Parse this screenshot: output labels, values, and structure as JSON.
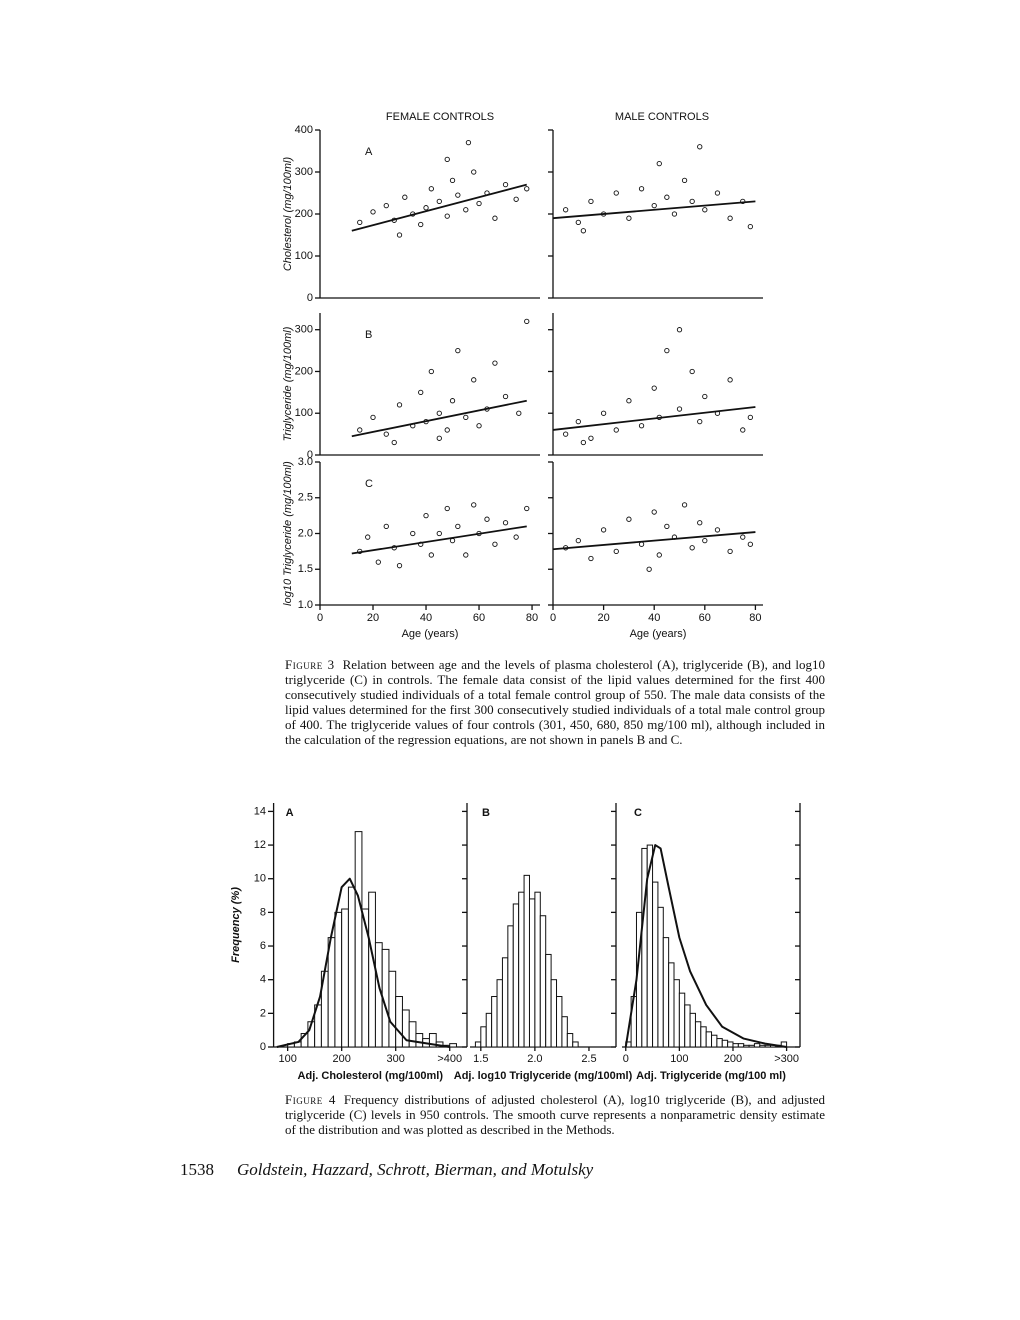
{
  "figure3": {
    "column_titles": [
      "FEMALE CONTROLS",
      "MALE CONTROLS"
    ],
    "charts": [
      {
        "type": "scatter",
        "panel": "A",
        "y_label": "Cholesterol (mg/100ml)",
        "xlim": [
          0,
          83
        ],
        "ylim": [
          0,
          400
        ],
        "yticks": [
          0,
          100,
          200,
          300,
          400
        ],
        "x": [
          20,
          25,
          28,
          32,
          35,
          38,
          40,
          42,
          45,
          48,
          50,
          52,
          55,
          58,
          60,
          63,
          66,
          70,
          74,
          78,
          48,
          56,
          15,
          30
        ],
        "y": [
          205,
          220,
          185,
          240,
          200,
          175,
          215,
          260,
          230,
          195,
          280,
          245,
          210,
          300,
          225,
          250,
          190,
          270,
          235,
          260,
          330,
          370,
          180,
          150
        ],
        "fit": {
          "x": [
            12,
            78
          ],
          "y": [
            160,
            270
          ]
        }
      },
      {
        "type": "scatter",
        "xlim": [
          0,
          83
        ],
        "ylim": [
          0,
          400
        ],
        "yticks": [
          0,
          100,
          200,
          300,
          400
        ],
        "x": [
          5,
          10,
          15,
          20,
          25,
          30,
          35,
          40,
          45,
          48,
          52,
          55,
          60,
          65,
          70,
          75,
          78,
          42,
          58,
          12
        ],
        "y": [
          210,
          180,
          230,
          200,
          250,
          190,
          260,
          220,
          240,
          200,
          280,
          230,
          210,
          250,
          190,
          230,
          170,
          320,
          360,
          160
        ],
        "fit": {
          "x": [
            0,
            80
          ],
          "y": [
            190,
            230
          ]
        }
      },
      {
        "type": "scatter",
        "panel": "B",
        "y_label": "Triglyceride (mg/100ml)",
        "xlim": [
          0,
          83
        ],
        "ylim": [
          0,
          340
        ],
        "yticks": [
          0,
          100,
          200,
          300
        ],
        "x": [
          15,
          20,
          25,
          30,
          35,
          38,
          40,
          42,
          45,
          48,
          50,
          52,
          55,
          58,
          60,
          63,
          66,
          70,
          75,
          78,
          28,
          45
        ],
        "y": [
          60,
          90,
          50,
          120,
          70,
          150,
          80,
          200,
          100,
          60,
          130,
          250,
          90,
          180,
          70,
          110,
          220,
          140,
          100,
          320,
          30,
          40
        ],
        "fit": {
          "x": [
            12,
            78
          ],
          "y": [
            45,
            130
          ]
        }
      },
      {
        "type": "scatter",
        "xlim": [
          0,
          83
        ],
        "ylim": [
          0,
          340
        ],
        "yticks": [
          0,
          100,
          200,
          300
        ],
        "x": [
          5,
          10,
          15,
          20,
          25,
          30,
          35,
          40,
          42,
          45,
          50,
          55,
          58,
          60,
          65,
          70,
          75,
          78,
          50,
          12
        ],
        "y": [
          50,
          80,
          40,
          100,
          60,
          130,
          70,
          160,
          90,
          250,
          110,
          200,
          80,
          140,
          100,
          180,
          60,
          90,
          300,
          30
        ],
        "fit": {
          "x": [
            0,
            80
          ],
          "y": [
            60,
            115
          ]
        }
      },
      {
        "type": "scatter",
        "panel": "C",
        "y_label": "log10 Triglyceride (mg/100ml)",
        "x_label": "Age (years)",
        "xlim": [
          0,
          83
        ],
        "ylim": [
          1.0,
          3.0
        ],
        "xticks": [
          0,
          20,
          40,
          60,
          80
        ],
        "yticks": [
          {
            "value": 1.0,
            "label": "1.0"
          },
          1.5,
          {
            "value": 2.0,
            "label": "2.0"
          },
          2.5,
          {
            "value": 3.0,
            "label": "3.0"
          }
        ],
        "x": [
          15,
          18,
          22,
          25,
          28,
          30,
          35,
          38,
          40,
          42,
          45,
          48,
          50,
          52,
          55,
          58,
          60,
          63,
          66,
          70,
          74,
          78
        ],
        "y": [
          1.75,
          1.95,
          1.6,
          2.1,
          1.8,
          1.55,
          2.0,
          1.85,
          2.25,
          1.7,
          2.0,
          2.35,
          1.9,
          2.1,
          1.7,
          2.4,
          2.0,
          2.2,
          1.85,
          2.15,
          1.95,
          2.35
        ],
        "fit": {
          "x": [
            12,
            78
          ],
          "y": [
            1.72,
            2.1
          ]
        }
      },
      {
        "type": "scatter",
        "x_label": "Age (years)",
        "xlim": [
          0,
          83
        ],
        "ylim": [
          1.0,
          3.0
        ],
        "xticks": [
          0,
          20,
          40,
          60,
          80
        ],
        "yticks": [
          1.0,
          1.5,
          2.0,
          2.5,
          3.0
        ],
        "x": [
          5,
          10,
          15,
          20,
          25,
          30,
          35,
          40,
          42,
          45,
          48,
          52,
          55,
          58,
          60,
          65,
          70,
          75,
          78,
          38
        ],
        "y": [
          1.8,
          1.9,
          1.65,
          2.05,
          1.75,
          2.2,
          1.85,
          2.3,
          1.7,
          2.1,
          1.95,
          2.4,
          1.8,
          2.15,
          1.9,
          2.05,
          1.75,
          1.95,
          1.85,
          1.5
        ],
        "fit": {
          "x": [
            0,
            80
          ],
          "y": [
            1.78,
            2.02
          ]
        }
      }
    ]
  },
  "figure3_caption": {
    "label": "Figure 3",
    "text": "Relation between age and the levels of plasma cholesterol (A), triglyceride (B), and log10 triglyceride (C) in controls. The female data consist of the lipid values determined for the first 400 consecutively studied individuals of a total female control group of 550. The male data consists of the lipid values determined for the first 300 consecutively studied individuals of a total male control group of 400. The triglyceride values of four controls (301, 450, 680, 850 mg/100 ml), although included in the calculation of the regression equations, are not shown in panels B and C."
  },
  "figure4": {
    "y_label": "Frequency (%)",
    "ylim": [
      0,
      14.5
    ],
    "yticks": [
      0,
      2,
      4,
      6,
      8,
      10,
      12,
      14
    ],
    "charts": [
      {
        "type": "histogram",
        "panel": "A",
        "x_label": "Adj. Cholesterol (mg/100ml)",
        "xlim": [
          74,
          432
        ],
        "xticks": [
          100,
          200,
          300,
          {
            "value": 400,
            "label": ">400"
          }
        ],
        "bins": [
          100,
          112.5,
          125,
          137.5,
          150,
          162.5,
          175,
          187.5,
          200,
          212.5,
          225,
          237.5,
          250,
          262.5,
          275,
          287.5,
          300,
          312.5,
          325,
          337.5,
          350,
          362.5,
          375,
          387.5,
          400,
          412.5
        ],
        "counts": [
          0.2,
          0.3,
          0.8,
          1.5,
          2.5,
          4.5,
          6.5,
          8,
          8.2,
          9.5,
          12.8,
          8.2,
          9.2,
          6.2,
          5.8,
          4.5,
          3,
          2.2,
          1.5,
          0.8,
          0.5,
          0.8,
          0.3,
          0.1,
          0.2
        ],
        "density": {
          "x": [
            80,
            120,
            140,
            160,
            180,
            200,
            215,
            230,
            250,
            270,
            290,
            320,
            360,
            400
          ],
          "y": [
            0,
            0.3,
            1,
            3,
            6.5,
            9.5,
            10,
            9,
            6.5,
            3.5,
            1.5,
            0.4,
            0.2,
            0
          ]
        }
      },
      {
        "type": "histogram",
        "panel": "B",
        "x_label": "Adj. log10 Triglyceride (mg/100ml)",
        "xlim": [
          1.4,
          2.75
        ],
        "xticks": [
          1.5,
          {
            "value": 2.0,
            "label": "2.0"
          },
          2.5
        ],
        "bins": [
          1.45,
          1.5,
          1.55,
          1.6,
          1.65,
          1.7,
          1.75,
          1.8,
          1.85,
          1.9,
          1.95,
          2.0,
          2.05,
          2.1,
          2.15,
          2.2,
          2.25,
          2.3,
          2.35,
          2.4
        ],
        "counts": [
          0.3,
          1.2,
          2,
          3,
          4,
          5.3,
          7.2,
          8.5,
          9.2,
          10.2,
          8.8,
          9.2,
          7.8,
          5.5,
          4,
          3,
          1.8,
          0.8,
          0.3
        ]
      },
      {
        "type": "histogram",
        "panel": "C",
        "x_label": "Adj. Triglyceride (mg/100 ml)",
        "xlim": [
          -7,
          325
        ],
        "xticks": [
          0,
          100,
          200,
          {
            "value": 300,
            "label": ">300"
          }
        ],
        "bins": [
          0,
          10,
          20,
          30,
          40,
          50,
          60,
          70,
          80,
          90,
          100,
          110,
          120,
          130,
          140,
          150,
          160,
          170,
          180,
          190,
          200,
          210,
          220,
          230,
          240,
          250,
          260,
          270,
          280,
          290,
          300
        ],
        "counts": [
          0.3,
          3,
          8,
          11.8,
          12,
          9.8,
          8.3,
          6.5,
          5,
          4,
          3.2,
          2.5,
          2,
          1.5,
          1.2,
          0.9,
          0.7,
          0.5,
          0.4,
          0.3,
          0.2,
          0.2,
          0.1,
          0.1,
          0.2,
          0.1,
          0.1,
          0.1,
          0.1,
          0.3
        ],
        "density": {
          "x": [
            0,
            20,
            40,
            55,
            65,
            80,
            100,
            120,
            150,
            180,
            220,
            260,
            300
          ],
          "y": [
            0,
            4,
            10,
            12,
            11.8,
            9.5,
            6.5,
            4.5,
            2.5,
            1.2,
            0.5,
            0.2,
            0
          ]
        }
      }
    ]
  },
  "figure4_caption": {
    "label": "Figure 4",
    "text": "Frequency distributions of adjusted cholesterol (A), log10 triglyceride (B), and adjusted triglyceride (C) levels in 950 controls. The smooth curve represents a nonparametric density estimate of the distribution and was plotted as described in the Methods."
  },
  "footer": {
    "page_number": "1538",
    "authors": "Goldstein, Hazzard, Schrott, Bierman, and Motulsky"
  }
}
